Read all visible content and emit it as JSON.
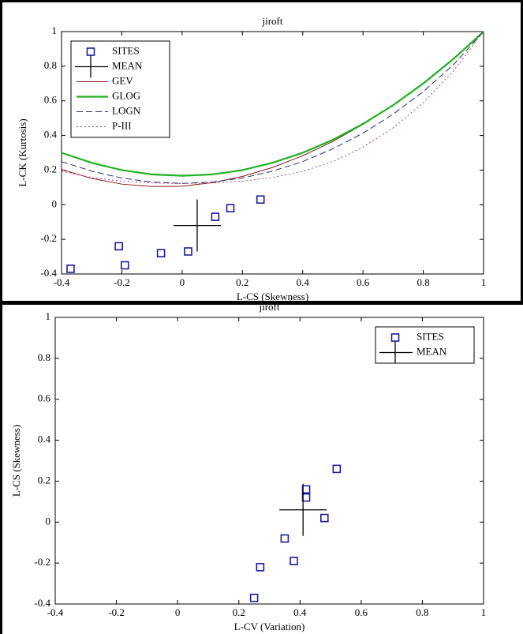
{
  "chart_data": [
    {
      "type": "scatter",
      "title": "jiroft",
      "x_label": "L-CS (Skewness)",
      "y_label": "L-CK (Kurtosis)",
      "xlim": [
        -0.4,
        1
      ],
      "ylim": [
        -0.4,
        1
      ],
      "xticks": [
        -0.4,
        -0.2,
        0,
        0.2,
        0.4,
        0.6,
        0.8,
        1
      ],
      "yticks": [
        -0.4,
        -0.2,
        0,
        0.2,
        0.4,
        0.6,
        0.8,
        1
      ],
      "legend": "upper left",
      "series": [
        {
          "name": "SITES",
          "color": "#1c1c9c",
          "style": "square",
          "x": [
            -0.37,
            -0.21,
            -0.19,
            -0.07,
            0.02,
            0.11,
            0.16,
            0.26
          ],
          "values": [
            -0.37,
            -0.24,
            -0.35,
            -0.28,
            -0.27,
            -0.07,
            -0.02,
            0.03
          ]
        },
        {
          "name": "MEAN",
          "color": "#000000",
          "style": "cross",
          "x": [
            0.05
          ],
          "values": [
            -0.12
          ]
        },
        {
          "name": "GEV",
          "color": "#8b1a1a",
          "style": "solid",
          "x": [
            -0.4,
            -0.3,
            -0.2,
            -0.1,
            0,
            0.1,
            0.2,
            0.3,
            0.4,
            0.5,
            0.6,
            0.7,
            0.8,
            0.9,
            1
          ],
          "values": [
            0.203,
            0.152,
            0.119,
            0.105,
            0.107,
            0.127,
            0.163,
            0.215,
            0.283,
            0.366,
            0.464,
            0.576,
            0.703,
            0.845,
            1
          ]
        },
        {
          "name": "GLOG",
          "color": "#22b022",
          "style": "thick",
          "x": [
            -0.4,
            -0.3,
            -0.2,
            -0.1,
            0,
            0.1,
            0.2,
            0.3,
            0.4,
            0.5,
            0.6,
            0.7,
            0.8,
            0.9,
            1
          ],
          "values": [
            0.3,
            0.242,
            0.2,
            0.175,
            0.167,
            0.175,
            0.2,
            0.242,
            0.3,
            0.375,
            0.467,
            0.575,
            0.7,
            0.842,
            1
          ]
        },
        {
          "name": "LOGN",
          "color": "#2a2a7a",
          "style": "dashed",
          "x": [
            -0.4,
            -0.3,
            -0.2,
            -0.1,
            0,
            0.1,
            0.2,
            0.3,
            0.4,
            0.5,
            0.6,
            0.7,
            0.8,
            0.9,
            1
          ],
          "values": [
            0.249,
            0.194,
            0.154,
            0.131,
            0.123,
            0.131,
            0.154,
            0.194,
            0.249,
            0.323,
            0.413,
            0.523,
            0.653,
            0.808,
            1
          ]
        },
        {
          "name": "P-III",
          "color": "#b04080",
          "style": "dotted",
          "x": [
            -0.4,
            -0.3,
            -0.2,
            -0.1,
            0,
            0.1,
            0.2,
            0.3,
            0.4,
            0.5,
            0.6,
            0.7,
            0.8,
            0.9,
            1
          ],
          "values": [
            0.193,
            0.157,
            0.136,
            0.126,
            0.122,
            0.126,
            0.136,
            0.157,
            0.193,
            0.249,
            0.332,
            0.444,
            0.589,
            0.773,
            1
          ]
        }
      ]
    },
    {
      "type": "scatter",
      "title": "jiroft",
      "x_label": "L-CV (Variation)",
      "y_label": "L-CS (Skewness)",
      "xlim": [
        -0.4,
        1
      ],
      "ylim": [
        -0.4,
        1
      ],
      "xticks": [
        -0.4,
        -0.2,
        0,
        0.2,
        0.4,
        0.6,
        0.8,
        1
      ],
      "yticks": [
        -0.4,
        -0.2,
        0,
        0.2,
        0.4,
        0.6,
        0.8,
        1
      ],
      "legend": "upper right",
      "series": [
        {
          "name": "SITES",
          "color": "#1c1c9c",
          "style": "square",
          "x": [
            0.25,
            0.27,
            0.38,
            0.35,
            0.42,
            0.42,
            0.48,
            0.52
          ],
          "values": [
            -0.37,
            -0.22,
            -0.19,
            -0.08,
            0.12,
            0.16,
            0.02,
            0.26
          ]
        },
        {
          "name": "MEAN",
          "color": "#000000",
          "style": "cross",
          "x": [
            0.41
          ],
          "values": [
            0.06
          ]
        }
      ]
    }
  ]
}
